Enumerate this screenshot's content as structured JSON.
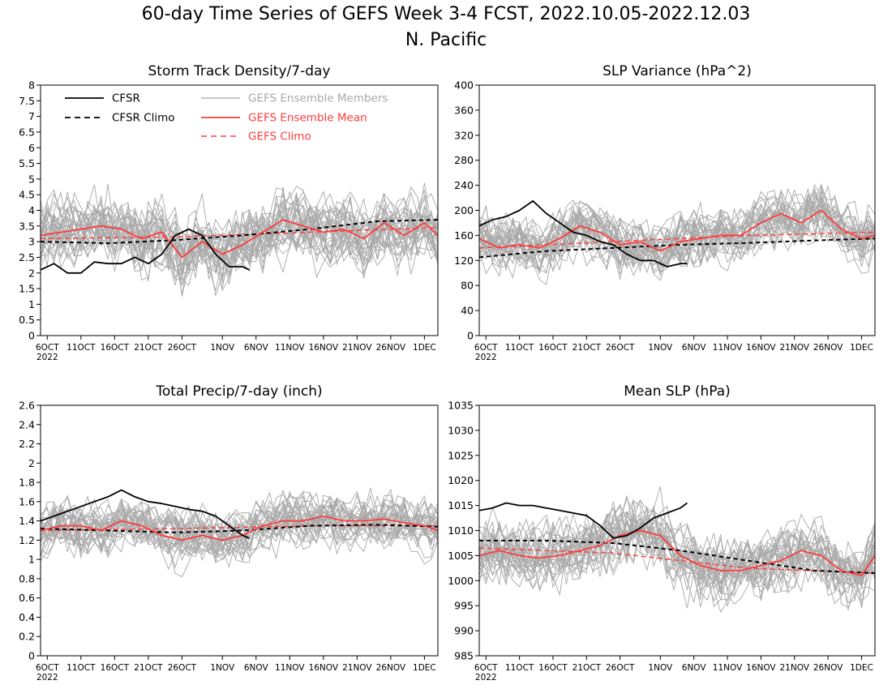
{
  "figure": {
    "title_line1": "60-day Time Series of GEFS Week 3-4 FCST, 2022.10.05-2022.12.03",
    "title_line2": "N. Pacific"
  },
  "colors": {
    "cfsr": "#000000",
    "ensemble_members": "#a8a8a8",
    "ensemble_mean": "#ff3b3b",
    "gefs_climo": "#ff3b3b"
  },
  "legend": {
    "cfsr": "CFSR",
    "cfsr_climo": "CFSR Climo",
    "members": "GEFS Ensemble Members",
    "mean": "GEFS Ensemble Mean",
    "gefs_climo": "GEFS Climo"
  },
  "x_axis": {
    "start_date": "2022-10-05",
    "days": 60,
    "ticks": [
      {
        "date": "2022-10-06",
        "label": "6OCT"
      },
      {
        "date": "2022-10-11",
        "label": "11OCT"
      },
      {
        "date": "2022-10-16",
        "label": "16OCT"
      },
      {
        "date": "2022-10-21",
        "label": "21OCT"
      },
      {
        "date": "2022-10-26",
        "label": "26OCT"
      },
      {
        "date": "2022-11-01",
        "label": "1NOV"
      },
      {
        "date": "2022-11-06",
        "label": "6NOV"
      },
      {
        "date": "2022-11-11",
        "label": "11NOV"
      },
      {
        "date": "2022-11-16",
        "label": "16NOV"
      },
      {
        "date": "2022-11-21",
        "label": "21NOV"
      },
      {
        "date": "2022-11-26",
        "label": "26NOV"
      },
      {
        "date": "2022-12-01",
        "label": "1DEC"
      }
    ],
    "year_label": "2022"
  },
  "chart_data": [
    {
      "type": "line",
      "id": "storm-track",
      "title": "Storm Track Density/7-day",
      "ylim": [
        0,
        8
      ],
      "yticks": [
        "0",
        "0.5",
        "1",
        "1.5",
        "2",
        "2.5",
        "3",
        "3.5",
        "4",
        "4.5",
        "5",
        "5.5",
        "6",
        "6.5",
        "7",
        "7.5",
        "8"
      ],
      "member_range": [
        0.2,
        6.3
      ],
      "member_spread": 1.15,
      "show_legend": true,
      "cfsr": {
        "x": [
          "2022-10-05",
          "2022-10-07",
          "2022-10-09",
          "2022-10-11",
          "2022-10-13",
          "2022-10-15",
          "2022-10-17",
          "2022-10-19",
          "2022-10-21",
          "2022-10-23",
          "2022-10-25",
          "2022-10-27",
          "2022-10-29",
          "2022-10-31",
          "2022-11-02",
          "2022-11-04",
          "2022-11-05"
        ],
        "y": [
          2.1,
          2.3,
          2.0,
          2.0,
          2.35,
          2.3,
          2.3,
          2.5,
          2.3,
          2.6,
          3.2,
          3.4,
          3.2,
          2.6,
          2.2,
          2.2,
          2.1
        ]
      },
      "cfsr_climo": {
        "x": [
          "2022-10-05",
          "2022-10-15",
          "2022-10-25",
          "2022-11-04",
          "2022-11-14",
          "2022-11-24",
          "2022-12-03"
        ],
        "y": [
          3.0,
          2.95,
          3.05,
          3.2,
          3.4,
          3.65,
          3.7
        ]
      },
      "mean": {
        "x": [
          "2022-10-05",
          "2022-10-08",
          "2022-10-11",
          "2022-10-14",
          "2022-10-17",
          "2022-10-20",
          "2022-10-23",
          "2022-10-26",
          "2022-10-29",
          "2022-11-01",
          "2022-11-04",
          "2022-11-07",
          "2022-11-10",
          "2022-11-13",
          "2022-11-16",
          "2022-11-19",
          "2022-11-22",
          "2022-11-25",
          "2022-11-28",
          "2022-12-01",
          "2022-12-03"
        ],
        "y": [
          3.2,
          3.3,
          3.4,
          3.5,
          3.4,
          3.1,
          3.3,
          2.5,
          3.0,
          2.6,
          2.9,
          3.3,
          3.7,
          3.5,
          3.3,
          3.4,
          3.1,
          3.6,
          3.2,
          3.6,
          3.2
        ]
      },
      "gefs_climo": {
        "x": [
          "2022-10-05",
          "2022-10-25",
          "2022-11-14",
          "2022-12-03"
        ],
        "y": [
          3.1,
          3.15,
          3.3,
          3.45
        ]
      }
    },
    {
      "type": "line",
      "id": "slp-variance",
      "title": "SLP Variance (hPa^2)",
      "ylim": [
        0,
        400
      ],
      "yticks": [
        "0",
        "40",
        "80",
        "120",
        "160",
        "200",
        "240",
        "280",
        "320",
        "360",
        "400"
      ],
      "member_range": [
        40,
        375
      ],
      "member_spread": 45,
      "show_legend": false,
      "cfsr": {
        "x": [
          "2022-10-05",
          "2022-10-07",
          "2022-10-09",
          "2022-10-11",
          "2022-10-13",
          "2022-10-15",
          "2022-10-17",
          "2022-10-19",
          "2022-10-21",
          "2022-10-23",
          "2022-10-25",
          "2022-10-27",
          "2022-10-29",
          "2022-10-31",
          "2022-11-02",
          "2022-11-04",
          "2022-11-05"
        ],
        "y": [
          175,
          185,
          190,
          200,
          215,
          195,
          180,
          165,
          160,
          150,
          145,
          130,
          120,
          120,
          110,
          115,
          115
        ]
      },
      "cfsr_climo": {
        "x": [
          "2022-10-05",
          "2022-10-15",
          "2022-10-25",
          "2022-11-04",
          "2022-11-14",
          "2022-11-24",
          "2022-12-03"
        ],
        "y": [
          125,
          135,
          140,
          145,
          148,
          152,
          155
        ]
      },
      "mean": {
        "x": [
          "2022-10-05",
          "2022-10-08",
          "2022-10-11",
          "2022-10-14",
          "2022-10-17",
          "2022-10-20",
          "2022-10-23",
          "2022-10-26",
          "2022-10-29",
          "2022-11-01",
          "2022-11-04",
          "2022-11-07",
          "2022-11-10",
          "2022-11-13",
          "2022-11-16",
          "2022-11-19",
          "2022-11-22",
          "2022-11-25",
          "2022-11-28",
          "2022-12-01",
          "2022-12-03"
        ],
        "y": [
          155,
          140,
          145,
          140,
          155,
          175,
          165,
          145,
          150,
          135,
          150,
          155,
          160,
          160,
          180,
          195,
          180,
          200,
          170,
          155,
          160
        ]
      },
      "gefs_climo": {
        "x": [
          "2022-10-05",
          "2022-10-25",
          "2022-11-14",
          "2022-12-03"
        ],
        "y": [
          140,
          150,
          160,
          165
        ]
      }
    },
    {
      "type": "line",
      "id": "total-precip",
      "title": "Total Precip/7-day (inch)",
      "ylim": [
        0,
        2.6
      ],
      "yticks": [
        "0",
        "0.2",
        "0.4",
        "0.6",
        "0.8",
        "1",
        "1.2",
        "1.4",
        "1.6",
        "1.8",
        "2",
        "2.2",
        "2.4",
        "2.6"
      ],
      "member_range": [
        0.3,
        2.25
      ],
      "member_spread": 0.28,
      "show_legend": false,
      "cfsr": {
        "x": [
          "2022-10-05",
          "2022-10-07",
          "2022-10-09",
          "2022-10-11",
          "2022-10-13",
          "2022-10-15",
          "2022-10-17",
          "2022-10-19",
          "2022-10-21",
          "2022-10-23",
          "2022-10-25",
          "2022-10-27",
          "2022-10-29",
          "2022-10-31",
          "2022-11-02",
          "2022-11-04",
          "2022-11-05"
        ],
        "y": [
          1.4,
          1.45,
          1.5,
          1.55,
          1.6,
          1.65,
          1.72,
          1.65,
          1.6,
          1.58,
          1.55,
          1.52,
          1.5,
          1.45,
          1.35,
          1.25,
          1.22
        ]
      },
      "cfsr_climo": {
        "x": [
          "2022-10-05",
          "2022-10-15",
          "2022-10-25",
          "2022-11-04",
          "2022-11-14",
          "2022-11-24",
          "2022-12-03"
        ],
        "y": [
          1.32,
          1.3,
          1.28,
          1.3,
          1.35,
          1.36,
          1.34
        ]
      },
      "mean": {
        "x": [
          "2022-10-05",
          "2022-10-08",
          "2022-10-11",
          "2022-10-14",
          "2022-10-17",
          "2022-10-20",
          "2022-10-23",
          "2022-10-26",
          "2022-10-29",
          "2022-11-01",
          "2022-11-04",
          "2022-11-07",
          "2022-11-10",
          "2022-11-13",
          "2022-11-16",
          "2022-11-19",
          "2022-11-22",
          "2022-11-25",
          "2022-11-28",
          "2022-12-01",
          "2022-12-03"
        ],
        "y": [
          1.3,
          1.35,
          1.35,
          1.3,
          1.4,
          1.35,
          1.25,
          1.2,
          1.25,
          1.2,
          1.25,
          1.35,
          1.4,
          1.4,
          1.45,
          1.4,
          1.4,
          1.42,
          1.38,
          1.35,
          1.3
        ]
      },
      "gefs_climo": {
        "x": [
          "2022-10-05",
          "2022-10-25",
          "2022-11-14",
          "2022-12-03"
        ],
        "y": [
          1.3,
          1.32,
          1.35,
          1.35
        ]
      }
    },
    {
      "type": "line",
      "id": "mean-slp",
      "title": "Mean SLP (hPa)",
      "ylim": [
        985,
        1035
      ],
      "yticks": [
        "985",
        "990",
        "995",
        "1000",
        "1005",
        "1010",
        "1015",
        "1020",
        "1025",
        "1030",
        "1035"
      ],
      "member_range": [
        986,
        1027.5
      ],
      "member_spread": 6.5,
      "show_legend": false,
      "cfsr": {
        "x": [
          "2022-10-05",
          "2022-10-07",
          "2022-10-09",
          "2022-10-11",
          "2022-10-13",
          "2022-10-15",
          "2022-10-17",
          "2022-10-19",
          "2022-10-21",
          "2022-10-23",
          "2022-10-25",
          "2022-10-27",
          "2022-10-29",
          "2022-10-31",
          "2022-11-02",
          "2022-11-04",
          "2022-11-05"
        ],
        "y": [
          1014,
          1014.5,
          1015.5,
          1015,
          1015,
          1014.5,
          1014,
          1013.5,
          1013,
          1011,
          1008.5,
          1009,
          1010.5,
          1012.5,
          1013.5,
          1014.5,
          1015.5
        ]
      },
      "cfsr_climo": {
        "x": [
          "2022-10-05",
          "2022-10-15",
          "2022-10-25",
          "2022-11-04",
          "2022-11-14",
          "2022-11-24",
          "2022-12-03"
        ],
        "y": [
          1008,
          1008,
          1007.5,
          1006,
          1004,
          1002,
          1001.5
        ]
      },
      "mean": {
        "x": [
          "2022-10-05",
          "2022-10-08",
          "2022-10-11",
          "2022-10-14",
          "2022-10-17",
          "2022-10-20",
          "2022-10-23",
          "2022-10-26",
          "2022-10-29",
          "2022-11-01",
          "2022-11-04",
          "2022-11-07",
          "2022-11-10",
          "2022-11-13",
          "2022-11-16",
          "2022-11-19",
          "2022-11-22",
          "2022-11-25",
          "2022-11-28",
          "2022-12-01",
          "2022-12-03"
        ],
        "y": [
          1005,
          1006,
          1005,
          1004.5,
          1005,
          1006,
          1007,
          1009,
          1010,
          1009,
          1005,
          1003,
          1002,
          1002,
          1003,
          1004,
          1006,
          1005,
          1002,
          1001,
          1005
        ]
      },
      "gefs_climo": {
        "x": [
          "2022-10-05",
          "2022-10-25",
          "2022-11-14",
          "2022-12-03"
        ],
        "y": [
          1006.5,
          1005.5,
          1002.5,
          1001.5
        ]
      }
    }
  ]
}
